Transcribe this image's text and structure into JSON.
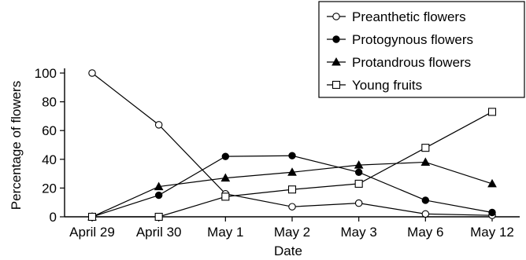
{
  "chart_data": {
    "type": "line",
    "xlabel": "Date",
    "ylabel": "Percentage of flowers",
    "ylim": [
      0,
      100
    ],
    "yticks": [
      0,
      20,
      40,
      60,
      80,
      100
    ],
    "categories": [
      "April 29",
      "April 30",
      "May 1",
      "May 2",
      "May 3",
      "May 6",
      "May 12"
    ],
    "legend_position": "top-right",
    "series": [
      {
        "name": "Preanthetic flowers",
        "marker": "circle-open",
        "values": [
          100,
          64,
          16,
          7,
          9.5,
          2,
          1
        ]
      },
      {
        "name": "Protogynous flowers",
        "marker": "circle-filled",
        "values": [
          0,
          15,
          42,
          42.5,
          31,
          11.5,
          3
        ]
      },
      {
        "name": "Protandrous flowers",
        "marker": "triangle-filled",
        "values": [
          0,
          21,
          27,
          31,
          36,
          38,
          23
        ]
      },
      {
        "name": "Young fruits",
        "marker": "square-open",
        "values": [
          0,
          0,
          14,
          19,
          23,
          48,
          73
        ]
      }
    ]
  }
}
